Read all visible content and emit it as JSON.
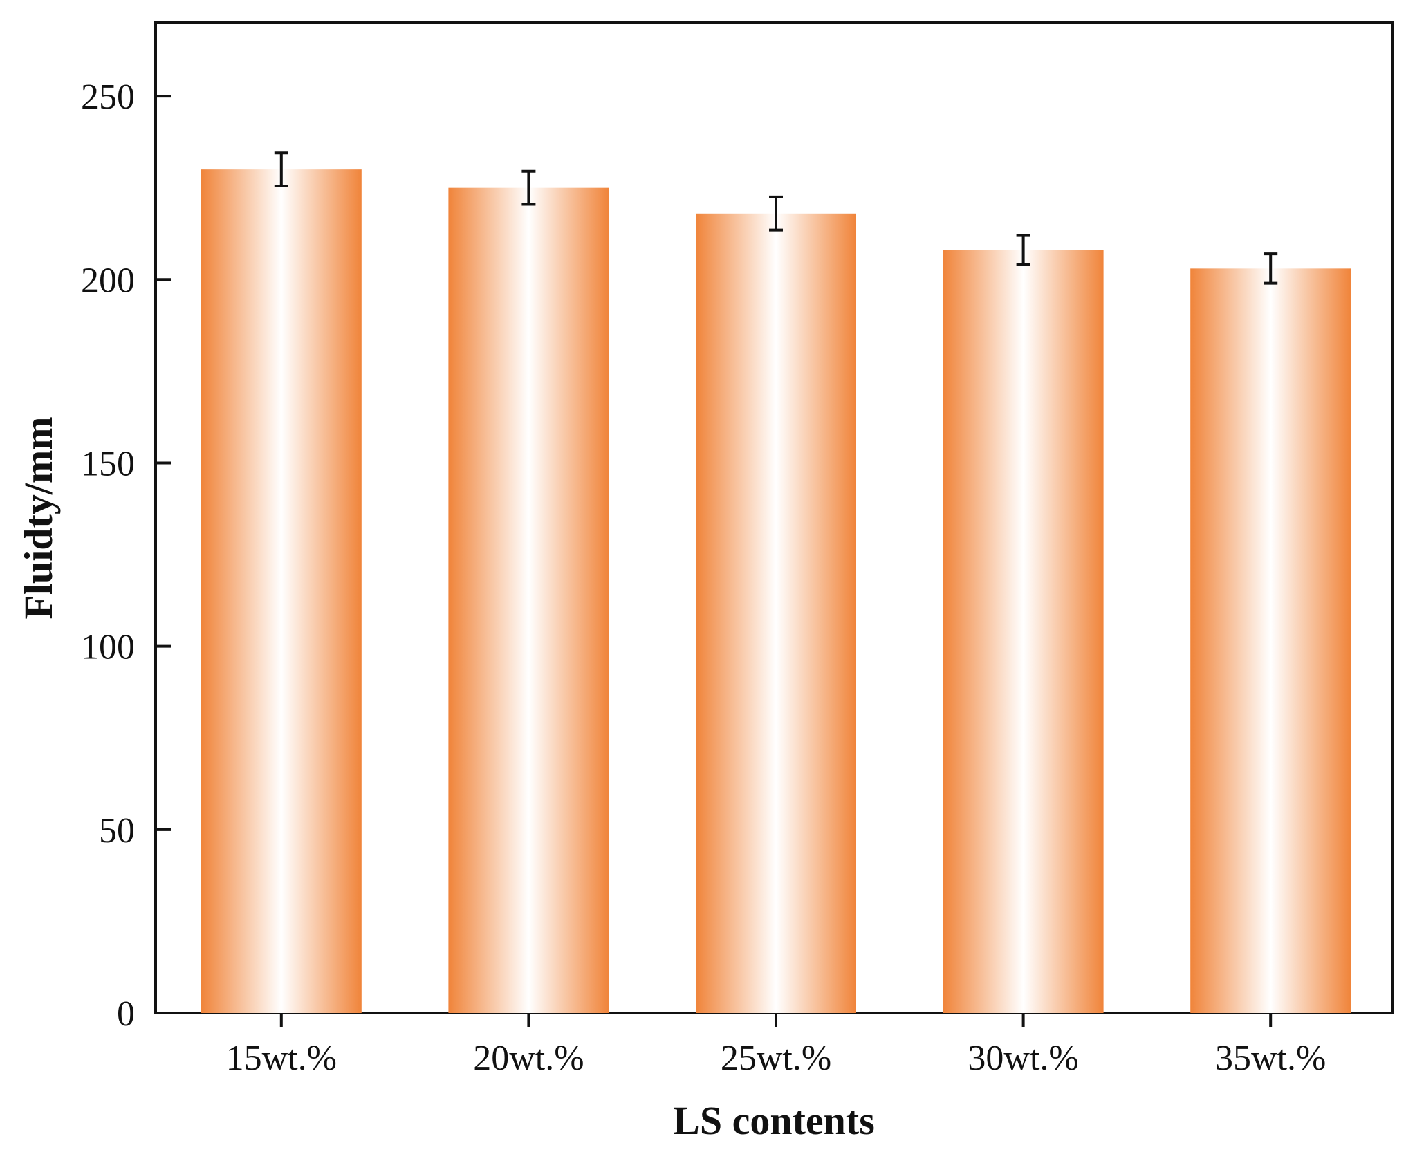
{
  "chart_data": {
    "type": "bar",
    "categories": [
      "15wt.%",
      "20wt.%",
      "25wt.%",
      "30wt.%",
      "35wt.%"
    ],
    "values": [
      230,
      225,
      218,
      208,
      203
    ],
    "errors": [
      4.5,
      4.5,
      4.5,
      4,
      4
    ],
    "title": "",
    "xlabel": "LS contents",
    "ylabel": "Fluidty/mm",
    "ylim": [
      0,
      270
    ],
    "yticks": [
      0,
      50,
      100,
      150,
      200,
      250
    ],
    "grid": false,
    "legend": "none",
    "colors": {
      "bar_edge": "#f0843a",
      "bar_center": "#ffffff",
      "axis": "#111111",
      "error_bar": "#111111"
    }
  }
}
